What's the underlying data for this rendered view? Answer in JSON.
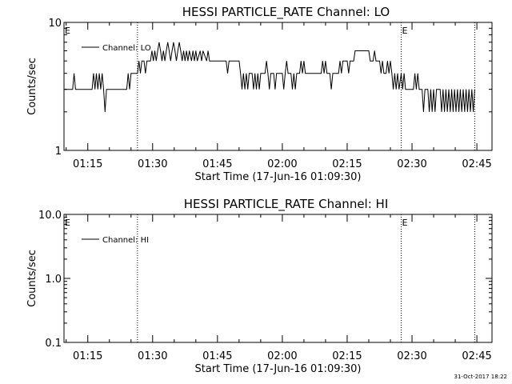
{
  "footer": {
    "timestamp": "31-Oct-2017 18:22"
  },
  "chart_data": [
    {
      "type": "line",
      "title": "HESSI PARTICLE_RATE Channel: LO",
      "xlabel": "Start Time (17-Jun-16 01:09:30)",
      "ylabel": "Counts/sec",
      "yscale": "log",
      "ylim": [
        1,
        10
      ],
      "y_tick_labels": [
        "1",
        "10"
      ],
      "xlim": [
        "01:09:30",
        "02:48:30"
      ],
      "x_tick_labels": [
        "01:15",
        "01:30",
        "01:45",
        "02:00",
        "02:15",
        "02:30",
        "02:45"
      ],
      "legend": {
        "position": "top-left",
        "entries": [
          "Channel: LO"
        ]
      },
      "grid": false,
      "event_lines": [
        {
          "time": "01:26:30",
          "label": ""
        },
        {
          "time": "02:27:30",
          "label": "E"
        },
        {
          "time": "02:44:30",
          "label": ""
        }
      ],
      "edge_label": "E",
      "series": [
        {
          "name": "Channel: LO",
          "points": [
            [
              "01:09:30",
              3
            ],
            [
              "01:11:30",
              3
            ],
            [
              "01:11:50",
              4
            ],
            [
              "01:12:10",
              3
            ],
            [
              "01:16:00",
              3
            ],
            [
              "01:16:20",
              4
            ],
            [
              "01:16:40",
              3
            ],
            [
              "01:17:00",
              4
            ],
            [
              "01:17:20",
              3
            ],
            [
              "01:17:40",
              4
            ],
            [
              "01:18:00",
              3
            ],
            [
              "01:18:20",
              4
            ],
            [
              "01:18:40",
              3
            ],
            [
              "01:19:00",
              2
            ],
            [
              "01:19:20",
              3
            ],
            [
              "01:24:00",
              3
            ],
            [
              "01:24:20",
              4
            ],
            [
              "01:24:40",
              3
            ],
            [
              "01:25:00",
              4
            ],
            [
              "01:26:30",
              4
            ],
            [
              "01:26:50",
              5
            ],
            [
              "01:27:10",
              4
            ],
            [
              "01:27:30",
              5
            ],
            [
              "01:28:00",
              5
            ],
            [
              "01:28:20",
              4
            ],
            [
              "01:28:40",
              5
            ],
            [
              "01:29:30",
              5
            ],
            [
              "01:29:50",
              6
            ],
            [
              "01:30:10",
              5
            ],
            [
              "01:30:30",
              6
            ],
            [
              "01:30:50",
              5
            ],
            [
              "01:31:10",
              6
            ],
            [
              "01:31:30",
              7
            ],
            [
              "01:31:50",
              6
            ],
            [
              "01:32:10",
              5
            ],
            [
              "01:32:30",
              6
            ],
            [
              "01:32:50",
              5
            ],
            [
              "01:33:10",
              6
            ],
            [
              "01:33:30",
              7
            ],
            [
              "01:33:50",
              6
            ],
            [
              "01:34:10",
              5
            ],
            [
              "01:34:30",
              6
            ],
            [
              "01:34:50",
              7
            ],
            [
              "01:35:10",
              6
            ],
            [
              "01:35:30",
              5
            ],
            [
              "01:35:50",
              6
            ],
            [
              "01:36:10",
              7
            ],
            [
              "01:36:30",
              6
            ],
            [
              "01:36:50",
              5
            ],
            [
              "01:37:10",
              6
            ],
            [
              "01:37:30",
              5
            ],
            [
              "01:37:50",
              6
            ],
            [
              "01:38:10",
              5
            ],
            [
              "01:38:30",
              6
            ],
            [
              "01:39:00",
              5
            ],
            [
              "01:39:20",
              6
            ],
            [
              "01:39:40",
              5
            ],
            [
              "01:40:00",
              6
            ],
            [
              "01:40:20",
              5
            ],
            [
              "01:41:00",
              6
            ],
            [
              "01:41:20",
              5
            ],
            [
              "01:41:40",
              6
            ],
            [
              "01:42:30",
              5
            ],
            [
              "01:42:50",
              6
            ],
            [
              "01:43:10",
              5
            ],
            [
              "01:47:00",
              5
            ],
            [
              "01:47:20",
              4
            ],
            [
              "01:47:40",
              5
            ],
            [
              "01:50:00",
              5
            ],
            [
              "01:50:20",
              4
            ],
            [
              "01:50:40",
              3
            ],
            [
              "01:51:00",
              4
            ],
            [
              "01:51:20",
              3
            ],
            [
              "01:51:40",
              4
            ],
            [
              "01:52:00",
              3
            ],
            [
              "01:52:20",
              4
            ],
            [
              "01:53:00",
              4
            ],
            [
              "01:53:20",
              3
            ],
            [
              "01:53:40",
              4
            ],
            [
              "01:54:00",
              3
            ],
            [
              "01:54:20",
              4
            ],
            [
              "01:54:40",
              3
            ],
            [
              "01:55:00",
              4
            ],
            [
              "01:56:00",
              4
            ],
            [
              "01:56:20",
              5
            ],
            [
              "01:56:40",
              4
            ],
            [
              "01:57:00",
              3
            ],
            [
              "01:57:20",
              4
            ],
            [
              "01:58:00",
              4
            ],
            [
              "01:58:20",
              3
            ],
            [
              "01:58:40",
              4
            ],
            [
              "02:00:00",
              4
            ],
            [
              "02:00:20",
              3
            ],
            [
              "02:00:40",
              4
            ],
            [
              "02:01:00",
              5
            ],
            [
              "02:01:20",
              4
            ],
            [
              "02:02:00",
              4
            ],
            [
              "02:02:20",
              3
            ],
            [
              "02:02:40",
              4
            ],
            [
              "02:03:00",
              3
            ],
            [
              "02:03:20",
              4
            ],
            [
              "02:04:00",
              4
            ],
            [
              "02:04:20",
              5
            ],
            [
              "02:04:40",
              4
            ],
            [
              "02:05:00",
              5
            ],
            [
              "02:05:20",
              4
            ],
            [
              "02:09:00",
              4
            ],
            [
              "02:09:20",
              5
            ],
            [
              "02:09:40",
              4
            ],
            [
              "02:10:00",
              5
            ],
            [
              "02:10:20",
              4
            ],
            [
              "02:11:00",
              4
            ],
            [
              "02:11:20",
              3
            ],
            [
              "02:11:40",
              4
            ],
            [
              "02:13:00",
              4
            ],
            [
              "02:13:20",
              5
            ],
            [
              "02:13:40",
              4
            ],
            [
              "02:14:00",
              5
            ],
            [
              "02:15:00",
              5
            ],
            [
              "02:15:20",
              4
            ],
            [
              "02:15:40",
              5
            ],
            [
              "02:16:30",
              5
            ],
            [
              "02:16:50",
              6
            ],
            [
              "02:20:00",
              6
            ],
            [
              "02:20:20",
              5
            ],
            [
              "02:21:00",
              5
            ],
            [
              "02:21:20",
              6
            ],
            [
              "02:21:40",
              5
            ],
            [
              "02:22:30",
              5
            ],
            [
              "02:22:50",
              4
            ],
            [
              "02:23:10",
              5
            ],
            [
              "02:23:30",
              4
            ],
            [
              "02:24:00",
              4
            ],
            [
              "02:24:20",
              5
            ],
            [
              "02:24:40",
              4
            ],
            [
              "02:25:00",
              5
            ],
            [
              "02:25:20",
              4
            ],
            [
              "02:25:40",
              3
            ],
            [
              "02:26:00",
              4
            ],
            [
              "02:26:20",
              3
            ],
            [
              "02:26:40",
              4
            ],
            [
              "02:27:00",
              3
            ],
            [
              "02:27:30",
              4
            ],
            [
              "02:27:50",
              3
            ],
            [
              "02:28:10",
              4
            ],
            [
              "02:28:30",
              3
            ],
            [
              "02:29:00",
              3
            ],
            [
              "02:30:20",
              3
            ],
            [
              "02:30:40",
              4
            ],
            [
              "02:31:00",
              3
            ],
            [
              "02:31:20",
              4
            ],
            [
              "02:31:40",
              3
            ],
            [
              "02:32:20",
              3
            ],
            [
              "02:32:40",
              2
            ],
            [
              "02:33:00",
              3
            ],
            [
              "02:33:40",
              3
            ],
            [
              "02:34:00",
              2
            ],
            [
              "02:34:20",
              3
            ],
            [
              "02:34:40",
              2
            ],
            [
              "02:35:00",
              3
            ],
            [
              "02:35:20",
              2
            ],
            [
              "02:35:40",
              3
            ],
            [
              "02:36:30",
              3
            ],
            [
              "02:36:50",
              2
            ],
            [
              "02:37:10",
              3
            ],
            [
              "02:37:30",
              2
            ],
            [
              "02:37:50",
              3
            ],
            [
              "02:38:10",
              2
            ],
            [
              "02:38:30",
              3
            ],
            [
              "02:38:50",
              2
            ],
            [
              "02:39:10",
              3
            ],
            [
              "02:39:30",
              2
            ],
            [
              "02:39:50",
              3
            ],
            [
              "02:40:10",
              2
            ],
            [
              "02:40:30",
              3
            ],
            [
              "02:40:50",
              2
            ],
            [
              "02:41:10",
              3
            ],
            [
              "02:41:30",
              2
            ],
            [
              "02:41:50",
              3
            ],
            [
              "02:42:10",
              2
            ],
            [
              "02:42:30",
              3
            ],
            [
              "02:42:50",
              2
            ],
            [
              "02:43:10",
              3
            ],
            [
              "02:43:30",
              2
            ],
            [
              "02:43:50",
              3
            ],
            [
              "02:44:10",
              2
            ],
            [
              "02:44:30",
              3
            ]
          ]
        }
      ]
    },
    {
      "type": "line",
      "title": "HESSI PARTICLE_RATE Channel: HI",
      "xlabel": "Start Time (17-Jun-16 01:09:30)",
      "ylabel": "Counts/sec",
      "yscale": "log",
      "ylim": [
        0.1,
        10
      ],
      "y_tick_labels": [
        "0.1",
        "1.0",
        "10.0"
      ],
      "xlim": [
        "01:09:30",
        "02:48:30"
      ],
      "x_tick_labels": [
        "01:15",
        "01:30",
        "01:45",
        "02:00",
        "02:15",
        "02:30",
        "02:45"
      ],
      "legend": {
        "position": "top-left",
        "entries": [
          "Channel: HI"
        ]
      },
      "grid": false,
      "event_lines": [
        {
          "time": "01:26:30",
          "label": ""
        },
        {
          "time": "02:27:30",
          "label": "E"
        },
        {
          "time": "02:44:30",
          "label": ""
        }
      ],
      "edge_label": "E",
      "series": [
        {
          "name": "Channel: HI",
          "points": []
        }
      ]
    }
  ]
}
